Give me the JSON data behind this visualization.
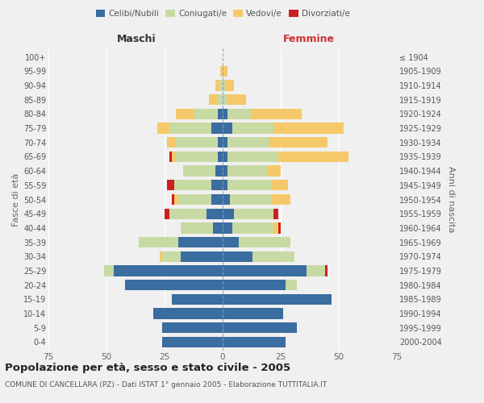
{
  "age_groups": [
    "0-4",
    "5-9",
    "10-14",
    "15-19",
    "20-24",
    "25-29",
    "30-34",
    "35-39",
    "40-44",
    "45-49",
    "50-54",
    "55-59",
    "60-64",
    "65-69",
    "70-74",
    "75-79",
    "80-84",
    "85-89",
    "90-94",
    "95-99",
    "100+"
  ],
  "birth_years": [
    "2000-2004",
    "1995-1999",
    "1990-1994",
    "1985-1989",
    "1980-1984",
    "1975-1979",
    "1970-1974",
    "1965-1969",
    "1960-1964",
    "1955-1959",
    "1950-1954",
    "1945-1949",
    "1940-1944",
    "1935-1939",
    "1930-1934",
    "1925-1929",
    "1920-1924",
    "1915-1919",
    "1910-1914",
    "1905-1909",
    "≤ 1904"
  ],
  "colors": {
    "celibi": "#3a6da0",
    "coniugati": "#c8daa4",
    "vedovi": "#f5c96a",
    "divorziati": "#cc2020"
  },
  "maschi_celibi": [
    26,
    26,
    30,
    22,
    42,
    47,
    18,
    19,
    4,
    7,
    5,
    5,
    3,
    2,
    2,
    5,
    2,
    0,
    0,
    0,
    0
  ],
  "maschi_coniugati": [
    0,
    0,
    0,
    0,
    0,
    4,
    8,
    17,
    14,
    16,
    14,
    16,
    14,
    18,
    18,
    18,
    10,
    2,
    1,
    0,
    0
  ],
  "maschi_vedovi": [
    0,
    0,
    0,
    0,
    0,
    0,
    1,
    0,
    0,
    0,
    2,
    0,
    0,
    2,
    4,
    5,
    8,
    4,
    2,
    1,
    0
  ],
  "maschi_divorziati": [
    0,
    0,
    0,
    0,
    0,
    0,
    0,
    0,
    0,
    2,
    1,
    3,
    0,
    1,
    0,
    0,
    0,
    0,
    0,
    0,
    0
  ],
  "femmine_celibi": [
    27,
    32,
    26,
    47,
    27,
    36,
    13,
    7,
    4,
    5,
    3,
    2,
    2,
    2,
    2,
    4,
    2,
    0,
    0,
    0,
    0
  ],
  "femmine_coniugati": [
    0,
    0,
    0,
    0,
    5,
    8,
    18,
    22,
    18,
    17,
    18,
    19,
    17,
    22,
    18,
    18,
    10,
    2,
    1,
    0,
    0
  ],
  "femmine_vedovi": [
    0,
    0,
    0,
    0,
    0,
    0,
    0,
    0,
    2,
    0,
    8,
    7,
    6,
    30,
    25,
    30,
    22,
    8,
    4,
    2,
    0
  ],
  "femmine_divorziati": [
    0,
    0,
    0,
    0,
    0,
    1,
    0,
    0,
    1,
    2,
    0,
    0,
    0,
    0,
    0,
    0,
    0,
    0,
    0,
    0,
    0
  ],
  "title": "Popolazione per età, sesso e stato civile - 2005",
  "subtitle": "COMUNE DI CANCELLARA (PZ) - Dati ISTAT 1° gennaio 2005 - Elaborazione TUTTITALIA.IT",
  "label_maschi": "Maschi",
  "label_femmine": "Femmine",
  "ylabel_left": "Fasce di età",
  "ylabel_right": "Anni di nascita",
  "legend_labels": [
    "Celibi/Nubili",
    "Coniugati/e",
    "Vedovi/e",
    "Divorziati/e"
  ],
  "xlim": 75,
  "bg_color": "#f0f0f0",
  "bar_height": 0.75
}
